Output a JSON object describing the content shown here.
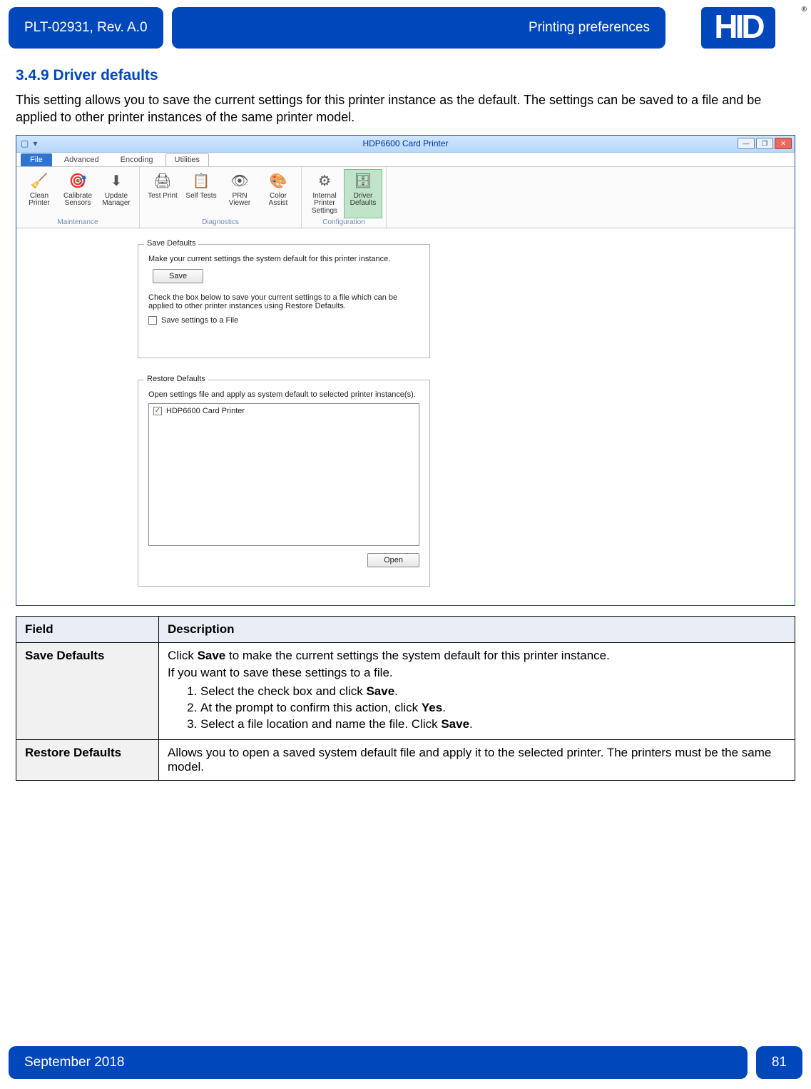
{
  "colors": {
    "brand": "#0047bb",
    "table_header_bg": "#e9eef6",
    "field_bg": "#f1f1f1",
    "ribbon_sel_bg": "#bfe4c9"
  },
  "header": {
    "doc_id": "PLT-02931, Rev. A.0",
    "breadcrumb": "Printing preferences",
    "logo_text": "HID",
    "reg_mark": "®"
  },
  "section": {
    "number_title": "3.4.9 Driver defaults",
    "intro": "This setting allows you to save the current settings for this printer instance as the default. The settings can be saved to a file and be applied to other printer instances of the same printer model."
  },
  "win": {
    "title": "HDP6600 Card Printer",
    "tabs": {
      "file": "File",
      "advanced": "Advanced",
      "encoding": "Encoding",
      "utilities": "Utilities"
    },
    "groups": {
      "maintenance": {
        "caption": "Maintenance",
        "items": [
          {
            "icon": "🧹",
            "label": "Clean Printer"
          },
          {
            "icon": "🎯",
            "label": "Calibrate Sensors"
          },
          {
            "icon": "⬇",
            "label": "Update Manager"
          }
        ]
      },
      "diagnostics": {
        "caption": "Diagnostics",
        "items": [
          {
            "icon": "🖨",
            "label": "Test Print"
          },
          {
            "icon": "📋",
            "label": "Self Tests"
          },
          {
            "icon": "👁",
            "label": "PRN Viewer"
          },
          {
            "icon": "🎨",
            "label": "Color Assist"
          }
        ]
      },
      "configuration": {
        "caption": "Configuration",
        "items": [
          {
            "icon": "⚙",
            "label": "Internal Printer Settings"
          },
          {
            "icon": "🗄",
            "label": "Driver Defaults",
            "selected": true
          }
        ]
      }
    },
    "save_defaults": {
      "legend": "Save Defaults",
      "line1": "Make your current settings the system default for this printer instance.",
      "save_btn": "Save",
      "line2": "Check the box below to save your current settings to a file which can be applied to other printer instances using Restore Defaults.",
      "checkbox_label": "Save settings to a File"
    },
    "restore_defaults": {
      "legend": "Restore Defaults",
      "line1": "Open settings file and apply as system default to selected printer instance(s).",
      "list_item": "HDP6600 Card Printer",
      "open_btn": "Open"
    },
    "winbtns": {
      "min": "—",
      "max": "❐",
      "close": "✕"
    }
  },
  "table": {
    "headers": {
      "field": "Field",
      "description": "Description"
    },
    "rows": [
      {
        "field": "Save Defaults",
        "desc_intro1": "Click ",
        "desc_bold1": "Save",
        "desc_intro2": " to make the current settings the system default for this printer instance.",
        "desc_line2": "If you want to save these settings to a file.",
        "steps": [
          {
            "pre": "Select the check box and click ",
            "bold": "Save",
            "post": "."
          },
          {
            "pre": "At the prompt to confirm this action, click ",
            "bold": "Yes",
            "post": "."
          },
          {
            "pre": "Select a file location and name the file. Click ",
            "bold": "Save",
            "post": "."
          }
        ]
      },
      {
        "field": "Restore Defaults",
        "desc_plain": "Allows you to open a saved system default file and apply it to the selected printer. The printers must be the same model."
      }
    ]
  },
  "footer": {
    "date": "September 2018",
    "page": "81"
  }
}
